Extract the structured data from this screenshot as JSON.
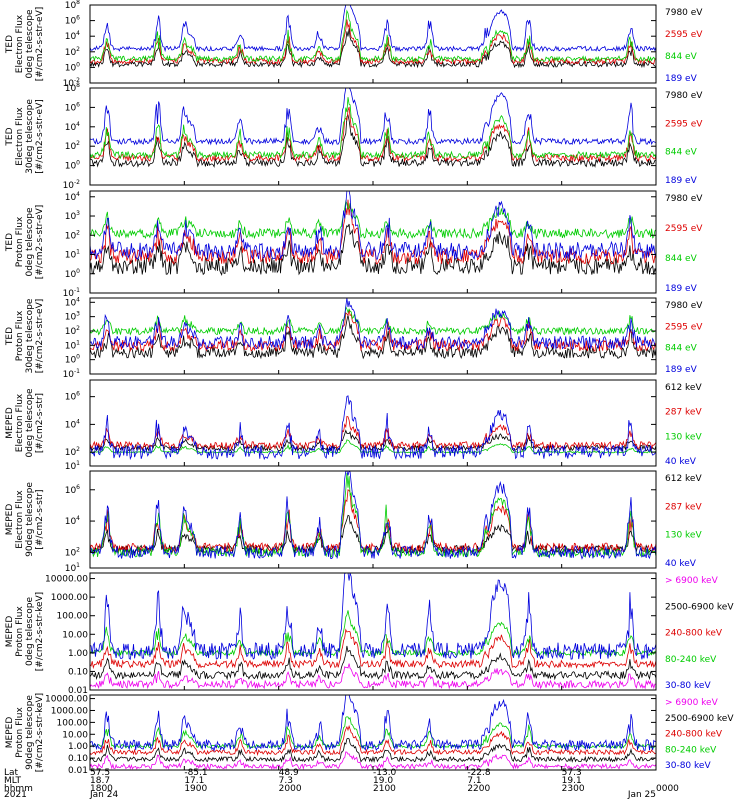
{
  "time_axis": {
    "rows": [
      {
        "label": "Lat",
        "values": [
          "57.5",
          "-85.1",
          "48.9",
          "-13.0",
          "-22.8",
          "57.3",
          ""
        ]
      },
      {
        "label": "MLT",
        "values": [
          "18.7",
          "17.1",
          "7.3",
          "19.0",
          "7.1",
          "19.1",
          ""
        ]
      },
      {
        "label": "hhmm",
        "values": [
          "1800",
          "1900",
          "2000",
          "2100",
          "2200",
          "2300",
          "0000"
        ]
      }
    ],
    "year": "2021",
    "start_date": "Jan 24",
    "end_date": "Jan 25",
    "ticks": [
      "1800",
      "1900",
      "2000",
      "2100",
      "2200",
      "2300",
      "0000"
    ]
  },
  "chart_data": [
    {
      "type": "line",
      "log_y": true,
      "ylabel": [
        "TED",
        "Electron Flux",
        "0deg telescope",
        "[#/cm2-s-str-eV]"
      ],
      "y_ticks": [
        {
          "v": -2,
          "t": "10-2"
        },
        {
          "v": 0,
          "t": "100"
        },
        {
          "v": 2,
          "t": "102"
        },
        {
          "v": 4,
          "t": "104"
        },
        {
          "v": 6,
          "t": "106"
        },
        {
          "v": 8,
          "t": "108"
        }
      ],
      "ylim": [
        -2,
        8
      ],
      "series": [
        {
          "name": "7980 eV",
          "color": "#000000",
          "base": 0.4,
          "peak": 2.0,
          "width": 0.35
        },
        {
          "name": "2595 eV",
          "color": "#dd0000",
          "base": 0.8,
          "peak": 2.3,
          "width": 0.35
        },
        {
          "name": "844 eV",
          "color": "#00cc00",
          "base": 1.1,
          "peak": 2.6,
          "width": 0.35
        },
        {
          "name": "189 eV",
          "color": "#0000dd",
          "base": 2.4,
          "peak": 3.4,
          "width": 0.3
        }
      ],
      "legend_text": [
        "7980 eV",
        "2595 eV",
        "844 eV",
        "189 eV"
      ]
    },
    {
      "type": "line",
      "log_y": true,
      "ylabel": [
        "TED",
        "Electron Flux",
        "30deg telescope",
        "[#/cm2-s-str-eV]"
      ],
      "y_ticks": [
        {
          "v": -2,
          "t": "10-2"
        },
        {
          "v": 0,
          "t": "100"
        },
        {
          "v": 2,
          "t": "102"
        },
        {
          "v": 4,
          "t": "104"
        },
        {
          "v": 6,
          "t": "106"
        },
        {
          "v": 8,
          "t": "108"
        }
      ],
      "ylim": [
        -2,
        8
      ],
      "series": [
        {
          "name": "7980 eV",
          "color": "#000000",
          "base": 0.3,
          "peak": 2.0,
          "width": 0.4
        },
        {
          "name": "2595 eV",
          "color": "#dd0000",
          "base": 0.8,
          "peak": 2.4,
          "width": 0.35
        },
        {
          "name": "844 eV",
          "color": "#00cc00",
          "base": 1.1,
          "peak": 2.7,
          "width": 0.35
        },
        {
          "name": "189 eV",
          "color": "#0000dd",
          "base": 2.5,
          "peak": 3.4,
          "width": 0.3
        }
      ],
      "legend_text": [
        "7980 eV",
        "2595 eV",
        "844 eV",
        "189 eV"
      ]
    },
    {
      "type": "line",
      "log_y": true,
      "ylabel": [
        "TED",
        "Proton Flux",
        "0deg telescope",
        "[#/cm2-s-str-eV]"
      ],
      "y_ticks": [
        {
          "v": -1,
          "t": "10-1"
        },
        {
          "v": 0,
          "t": "100"
        },
        {
          "v": 1,
          "t": "101"
        },
        {
          "v": 2,
          "t": "102"
        },
        {
          "v": 3,
          "t": "103"
        },
        {
          "v": 4,
          "t": "104"
        }
      ],
      "ylim": [
        -1,
        4.3
      ],
      "series": [
        {
          "name": "7980 eV",
          "color": "#000000",
          "base": 0.4,
          "peak": 1.1,
          "width": 0.45
        },
        {
          "name": "2595 eV",
          "color": "#dd0000",
          "base": 0.9,
          "peak": 1.3,
          "width": 0.4
        },
        {
          "name": "844 eV",
          "color": "#00cc00",
          "base": 2.1,
          "peak": 0.8,
          "width": 0.25
        },
        {
          "name": "189 eV",
          "color": "#0000dd",
          "base": 1.2,
          "peak": 1.5,
          "width": 0.45
        }
      ],
      "legend_text": [
        "7980 eV",
        "2595 eV",
        "844 eV",
        "189 eV"
      ]
    },
    {
      "type": "line",
      "log_y": true,
      "ylabel": [
        "TED",
        "Proton Flux",
        "30deg telescope",
        "[#/cm2-s-str-eV]"
      ],
      "y_ticks": [
        {
          "v": -1,
          "t": "10-1"
        },
        {
          "v": 0,
          "t": "100"
        },
        {
          "v": 1,
          "t": "101"
        },
        {
          "v": 2,
          "t": "102"
        },
        {
          "v": 3,
          "t": "103"
        },
        {
          "v": 4,
          "t": "104"
        }
      ],
      "ylim": [
        -1,
        4.3
      ],
      "series": [
        {
          "name": "7980 eV",
          "color": "#000000",
          "base": 0.5,
          "peak": 1.1,
          "width": 0.4
        },
        {
          "name": "2595 eV",
          "color": "#dd0000",
          "base": 1.0,
          "peak": 1.2,
          "width": 0.4
        },
        {
          "name": "844 eV",
          "color": "#00cc00",
          "base": 2.0,
          "peak": 0.8,
          "width": 0.25
        },
        {
          "name": "189 eV",
          "color": "#0000dd",
          "base": 1.2,
          "peak": 1.5,
          "width": 0.45
        }
      ],
      "legend_text": [
        "7980 eV",
        "2595 eV",
        "844 eV",
        "189 eV"
      ]
    },
    {
      "type": "line",
      "log_y": true,
      "ylabel": [
        "MEPED",
        "Electron Flux",
        "0deg telescope",
        "[#/cm2-s-str]"
      ],
      "y_ticks": [
        {
          "v": 1,
          "t": "101"
        },
        {
          "v": 2,
          "t": "102"
        },
        {
          "v": 4,
          "t": "104"
        },
        {
          "v": 6,
          "t": "106"
        }
      ],
      "ylim": [
        1,
        7.2
      ],
      "series": [
        {
          "name": "612 keV",
          "color": "#000000",
          "base": 2.3,
          "peak": 0.6,
          "width": 0.2
        },
        {
          "name": "287 keV",
          "color": "#dd0000",
          "base": 2.5,
          "peak": 0.9,
          "width": 0.25
        },
        {
          "name": "130 keV",
          "color": "#00cc00",
          "base": 2.0,
          "peak": 0.4,
          "width": 0.05
        },
        {
          "name": "40 keV",
          "color": "#0000dd",
          "base": 2.0,
          "peak": 2.0,
          "width": 0.5
        }
      ],
      "legend_text": [
        "612 keV",
        "287 keV",
        "130 keV",
        "40 keV"
      ]
    },
    {
      "type": "line",
      "log_y": true,
      "ylabel": [
        "MEPED",
        "Electron Flux",
        "90deg telescope",
        "[#/cm2-s-str]"
      ],
      "y_ticks": [
        {
          "v": 1,
          "t": "101"
        },
        {
          "v": 2,
          "t": "102"
        },
        {
          "v": 4,
          "t": "104"
        },
        {
          "v": 6,
          "t": "106"
        }
      ],
      "ylim": [
        1,
        7.2
      ],
      "series": [
        {
          "name": "612 keV",
          "color": "#000000",
          "base": 2.2,
          "peak": 1.0,
          "width": 0.25
        },
        {
          "name": "287 keV",
          "color": "#dd0000",
          "base": 2.3,
          "peak": 1.8,
          "width": 0.3
        },
        {
          "name": "130 keV",
          "color": "#00cc00",
          "base": 2.0,
          "peak": 2.4,
          "width": 0.3
        },
        {
          "name": "40 keV",
          "color": "#0000dd",
          "base": 2.0,
          "peak": 3.0,
          "width": 0.4
        }
      ],
      "legend_text": [
        "612 keV",
        "287 keV",
        "130 keV",
        "40 keV"
      ]
    },
    {
      "type": "line",
      "log_y": true,
      "ylabel": [
        "MEPED",
        "Proton Flux",
        "0deg telescope",
        "[#/cm2-s-str-keV]"
      ],
      "y_ticks": [
        {
          "v": -2,
          "t": "0.01"
        },
        {
          "v": -1,
          "t": "0.10"
        },
        {
          "v": 0,
          "t": "1.00"
        },
        {
          "v": 1,
          "t": "10.00"
        },
        {
          "v": 2,
          "t": "100.00"
        },
        {
          "v": 3,
          "t": "1000.00"
        },
        {
          "v": 4,
          "t": "10000.00"
        }
      ],
      "ylim": [
        -2,
        4.3
      ],
      "series": [
        {
          "name": "> 6900 keV",
          "color": "#ee00ee",
          "base": -1.7,
          "peak": 0.5,
          "width": 0.2
        },
        {
          "name": "2500-6900 keV",
          "color": "#000000",
          "base": -1.2,
          "peak": 0.7,
          "width": 0.2
        },
        {
          "name": "240-800 keV",
          "color": "#dd0000",
          "base": -0.6,
          "peak": 1.0,
          "width": 0.2
        },
        {
          "name": "80-240 keV",
          "color": "#00cc00",
          "base": 0.0,
          "peak": 1.1,
          "width": 0.15
        },
        {
          "name": "30-80 keV",
          "color": "#0000dd",
          "base": 0.1,
          "peak": 2.5,
          "width": 0.45
        }
      ],
      "legend_text": [
        "> 6900 keV",
        "2500-6900 keV",
        "240-800 keV",
        "80-240 keV",
        "30-80 keV"
      ],
      "legend_colors": [
        "#ee00ee",
        "#000000",
        "#dd0000",
        "#00cc00",
        "#0000dd"
      ]
    },
    {
      "type": "line",
      "log_y": true,
      "ylabel": [
        "MEPED",
        "Proton Flux",
        "90deg telescope",
        "[#/cm2-s-str-keV]"
      ],
      "y_ticks": [
        {
          "v": -2,
          "t": "0.01"
        },
        {
          "v": -1,
          "t": "0.10"
        },
        {
          "v": 0,
          "t": "1.00"
        },
        {
          "v": 1,
          "t": "10.00"
        },
        {
          "v": 2,
          "t": "100.00"
        },
        {
          "v": 3,
          "t": "1000.00"
        },
        {
          "v": 4,
          "t": "10000.00"
        }
      ],
      "ylim": [
        -2,
        4.3
      ],
      "series": [
        {
          "name": "> 6900 keV",
          "color": "#ee00ee",
          "base": -1.7,
          "peak": 0.6,
          "width": 0.2
        },
        {
          "name": "2500-6900 keV",
          "color": "#000000",
          "base": -1.1,
          "peak": 0.8,
          "width": 0.2
        },
        {
          "name": "240-800 keV",
          "color": "#dd0000",
          "base": -0.5,
          "peak": 1.1,
          "width": 0.2
        },
        {
          "name": "80-240 keV",
          "color": "#00cc00",
          "base": 0.0,
          "peak": 1.3,
          "width": 0.15
        },
        {
          "name": "30-80 keV",
          "color": "#0000dd",
          "base": 0.1,
          "peak": 2.5,
          "width": 0.45
        }
      ],
      "legend_text": [
        "> 6900 keV",
        "2500-6900 keV",
        "240-800 keV",
        "80-240 keV",
        "30-80 keV"
      ],
      "legend_colors": [
        "#ee00ee",
        "#000000",
        "#dd0000",
        "#00cc00",
        "#0000dd"
      ]
    }
  ],
  "events": [
    {
      "t": 0.03,
      "h": 1.0
    },
    {
      "t": 0.12,
      "h": 1.0
    },
    {
      "t": 0.165,
      "h": 0.6
    },
    {
      "t": 0.265,
      "h": 0.7
    },
    {
      "t": 0.35,
      "h": 1.0
    },
    {
      "t": 0.405,
      "h": 0.6
    },
    {
      "t": 0.455,
      "h": 0.8
    },
    {
      "t": 0.525,
      "h": 1.0
    },
    {
      "t": 0.6,
      "h": 0.8
    },
    {
      "t": 0.7,
      "h": 0.6
    },
    {
      "t": 0.775,
      "h": 1.0
    },
    {
      "t": 0.955,
      "h": 0.9
    }
  ],
  "arches": [
    {
      "t": 0.175,
      "h": 0.4,
      "w": 0.012
    },
    {
      "t": 0.46,
      "h": 0.9,
      "w": 0.018
    },
    {
      "t": 0.725,
      "h": 1.0,
      "w": 0.02
    }
  ]
}
